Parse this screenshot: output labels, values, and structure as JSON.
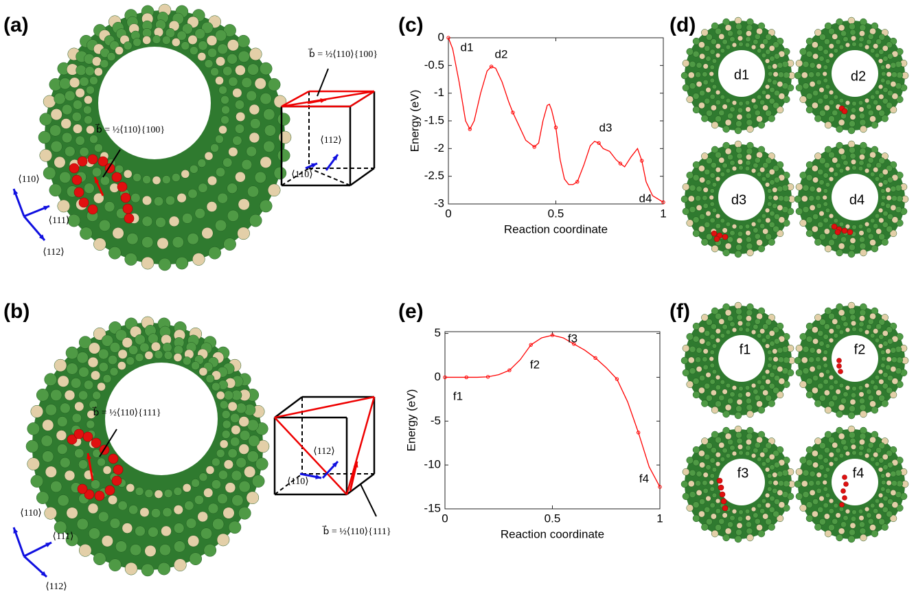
{
  "chart_data": [
    {
      "type": "line",
      "xlabel": "Reaction coordinate",
      "ylabel": "Energy (eV)",
      "xlim": [
        0,
        1
      ],
      "xticks": [
        0,
        0.5,
        1
      ],
      "ylim": [
        -3,
        0
      ],
      "yticks": [
        -3,
        -2.5,
        -2,
        -1.5,
        -1,
        -0.5,
        0
      ],
      "annotations": [
        "d1",
        "d2",
        "d3",
        "d4"
      ],
      "series": [
        {
          "color": "#ff0000",
          "marker": false,
          "x": [
            0,
            0.02,
            0.05,
            0.08,
            0.1,
            0.12,
            0.15,
            0.18,
            0.2,
            0.22,
            0.25,
            0.28,
            0.3,
            0.33,
            0.36,
            0.4,
            0.42,
            0.44,
            0.46,
            0.47,
            0.48,
            0.5,
            0.52,
            0.54,
            0.56,
            0.58,
            0.6,
            0.63,
            0.66,
            0.68,
            0.7,
            0.72,
            0.75,
            0.78,
            0.8,
            0.82,
            0.85,
            0.88,
            0.9,
            0.92,
            0.95,
            1
          ],
          "values": [
            0,
            -0.2,
            -0.8,
            -1.5,
            -1.65,
            -1.5,
            -1.0,
            -0.6,
            -0.52,
            -0.55,
            -0.8,
            -1.15,
            -1.35,
            -1.6,
            -1.85,
            -1.97,
            -1.9,
            -1.5,
            -1.22,
            -1.2,
            -1.3,
            -1.62,
            -2.2,
            -2.55,
            -2.65,
            -2.65,
            -2.6,
            -2.3,
            -1.95,
            -1.87,
            -1.9,
            -2.0,
            -2.05,
            -2.2,
            -2.27,
            -2.33,
            -2.15,
            -2.0,
            -2.22,
            -2.6,
            -2.85,
            -2.97
          ]
        },
        {
          "color": "#ff0000",
          "marker": true,
          "x": [
            0,
            0.1,
            0.2,
            0.3,
            0.4,
            0.5,
            0.6,
            0.7,
            0.8,
            0.9,
            1
          ],
          "values": [
            0,
            -1.65,
            -0.52,
            -1.35,
            -1.97,
            -1.62,
            -2.6,
            -1.9,
            -2.27,
            -2.22,
            -2.97
          ]
        }
      ]
    },
    {
      "type": "line",
      "xlabel": "Reaction coordinate",
      "ylabel": "Energy (eV)",
      "xlim": [
        0,
        1
      ],
      "xticks": [
        0,
        0.5,
        1
      ],
      "ylim": [
        -15,
        5.2
      ],
      "yticks": [
        -15,
        -10,
        -5,
        0,
        5
      ],
      "annotations": [
        "f1",
        "f2",
        "f3",
        "f4"
      ],
      "series": [
        {
          "color": "#ff0000",
          "marker": false,
          "x": [
            0,
            0.05,
            0.1,
            0.15,
            0.2,
            0.25,
            0.3,
            0.35,
            0.4,
            0.45,
            0.5,
            0.55,
            0.6,
            0.65,
            0.7,
            0.75,
            0.8,
            0.85,
            0.9,
            0.95,
            1
          ],
          "values": [
            0,
            0,
            0,
            0,
            0.05,
            0.3,
            0.8,
            2.0,
            3.7,
            4.5,
            4.8,
            4.5,
            3.8,
            3.1,
            2.2,
            1.1,
            -0.2,
            -2.8,
            -6.3,
            -10.2,
            -12.5
          ]
        },
        {
          "color": "#ff0000",
          "marker": true,
          "x": [
            0,
            0.1,
            0.2,
            0.3,
            0.4,
            0.5,
            0.6,
            0.7,
            0.8,
            0.9,
            1
          ],
          "values": [
            0,
            0,
            0.05,
            0.8,
            3.7,
            4.8,
            3.8,
            2.2,
            -0.2,
            -6.3,
            -12.5
          ]
        }
      ]
    }
  ],
  "figure": {
    "panel_labels": [
      "(a)",
      "(b)",
      "(c)",
      "(d)",
      "(e)",
      "(f)"
    ],
    "a": {
      "burgers": "b⃗ = ½⟨110⟩{100}",
      "cube_burgers": "b⃗ = ½⟨110⟩{100}",
      "directions": [
        "⟨110⟩",
        "⟨111⟩",
        "⟨112⟩"
      ],
      "cube_directions": [
        "⟨112⟩",
        "⟨110⟩"
      ]
    },
    "b": {
      "burgers": "b⃗ = ½⟨110⟩{111}",
      "cube_burgers": "b⃗ = ½⟨110⟩{111}",
      "directions": [
        "⟨110⟩",
        "⟨111⟩",
        "⟨112⟩"
      ],
      "cube_directions": [
        "⟨112⟩",
        "⟨110⟩"
      ]
    },
    "d": [
      "d1",
      "d2",
      "d3",
      "d4"
    ],
    "f": [
      "f1",
      "f2",
      "f3",
      "f4"
    ]
  }
}
